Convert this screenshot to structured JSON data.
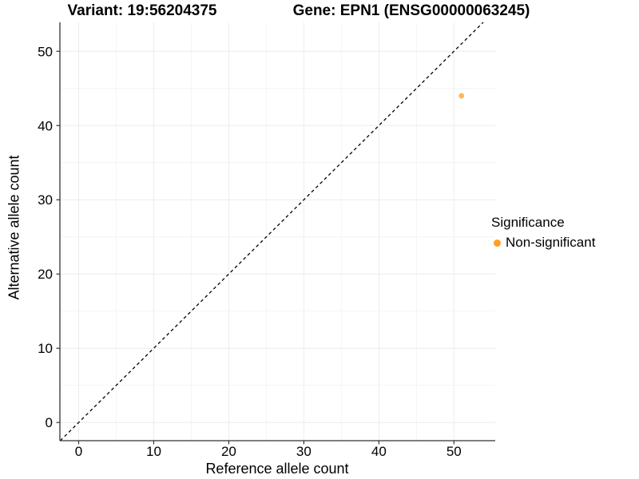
{
  "chart_data": {
    "type": "scatter",
    "titles": {
      "left": "Variant: 19:56204375",
      "right": "Gene: EPN1 (ENSG00000063245)"
    },
    "xlabel": "Reference allele count",
    "ylabel": "Alternative allele count",
    "xlim": [
      -2.5,
      55.5
    ],
    "ylim": [
      -2.45,
      53.9
    ],
    "xticks": [
      0,
      10,
      20,
      30,
      40,
      50
    ],
    "yticks": [
      0,
      10,
      20,
      30,
      40,
      50
    ],
    "xminor": [
      5,
      15,
      25,
      35,
      45
    ],
    "yminor": [
      5,
      15,
      25,
      35,
      45
    ],
    "grid": "major+minor",
    "identity_line": {
      "equation": "y = x",
      "style": "dashed",
      "color": "#000000"
    },
    "series": [
      {
        "name": "Non-significant",
        "color": "#FFA018",
        "opacity": 0.75,
        "points": [
          {
            "x": 51,
            "y": 44
          }
        ]
      }
    ],
    "legend": {
      "title": "Significance",
      "position": "right",
      "items": [
        {
          "label": "Non-significant",
          "color": "#FFA018"
        }
      ]
    },
    "colors": {
      "background": "#FFFFFF",
      "axis_line": "#333333",
      "tick": "#333333",
      "grid_major": "#ECECEC",
      "grid_minor": "#F4F4F4",
      "text": "#000000",
      "point": "#FFA018"
    }
  }
}
